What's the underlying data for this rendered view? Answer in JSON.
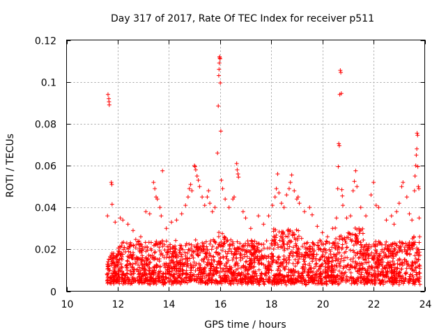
{
  "chart_data": {
    "type": "scatter",
    "title": "Day 317 of 2017, Rate Of TEC Index for receiver p511",
    "xlabel": "GPS time / hours",
    "ylabel": "ROTI / TECUs",
    "xlim": [
      10,
      24
    ],
    "ylim": [
      0,
      0.12
    ],
    "xticks": [
      "10",
      "12",
      "14",
      "16",
      "18",
      "20",
      "22",
      "24"
    ],
    "yticks": [
      "0",
      "0.02",
      "0.04",
      "0.06",
      "0.08",
      "0.1",
      "0.12"
    ],
    "xtick_values": [
      10,
      12,
      14,
      16,
      18,
      20,
      22,
      24
    ],
    "ytick_values": [
      0,
      0.02,
      0.04,
      0.06,
      0.08,
      0.1,
      0.12
    ],
    "grid": true,
    "marker": "plus",
    "color": "#ff0000",
    "series": [
      {
        "name": "ROTI",
        "cluster_note": "dense band of points between ~0.003 and ~0.03 TECU spanning 11.6h to 23.8h",
        "points": [
          [
            11.62,
            0.094
          ],
          [
            11.65,
            0.092
          ],
          [
            11.66,
            0.0905
          ],
          [
            11.67,
            0.089
          ],
          [
            11.6,
            0.036
          ],
          [
            11.75,
            0.052
          ],
          [
            11.77,
            0.051
          ],
          [
            11.78,
            0.0415
          ],
          [
            11.9,
            0.033
          ],
          [
            12.1,
            0.035
          ],
          [
            12.2,
            0.034
          ],
          [
            12.4,
            0.032
          ],
          [
            12.6,
            0.029
          ],
          [
            12.9,
            0.026
          ],
          [
            13.1,
            0.038
          ],
          [
            13.25,
            0.037
          ],
          [
            13.4,
            0.052
          ],
          [
            13.45,
            0.049
          ],
          [
            13.5,
            0.045
          ],
          [
            13.55,
            0.044
          ],
          [
            13.65,
            0.04
          ],
          [
            13.7,
            0.036
          ],
          [
            13.75,
            0.0575
          ],
          [
            13.9,
            0.03
          ],
          [
            14.1,
            0.033
          ],
          [
            14.3,
            0.034
          ],
          [
            14.5,
            0.037
          ],
          [
            14.65,
            0.041
          ],
          [
            14.75,
            0.045
          ],
          [
            14.8,
            0.049
          ],
          [
            14.85,
            0.051
          ],
          [
            14.9,
            0.048
          ],
          [
            15.0,
            0.06
          ],
          [
            15.02,
            0.0595
          ],
          [
            15.05,
            0.058
          ],
          [
            15.1,
            0.055
          ],
          [
            15.15,
            0.053
          ],
          [
            15.2,
            0.05
          ],
          [
            15.3,
            0.045
          ],
          [
            15.4,
            0.041
          ],
          [
            15.5,
            0.045
          ],
          [
            15.55,
            0.048
          ],
          [
            15.6,
            0.042
          ],
          [
            15.7,
            0.038
          ],
          [
            15.8,
            0.04
          ],
          [
            15.9,
            0.066
          ],
          [
            15.93,
            0.0885
          ],
          [
            15.95,
            0.103
          ],
          [
            15.96,
            0.106
          ],
          [
            15.97,
            0.109
          ],
          [
            15.98,
            0.112
          ],
          [
            15.99,
            0.1115
          ],
          [
            16.0,
            0.111
          ],
          [
            16.01,
            0.0995
          ],
          [
            16.03,
            0.0765
          ],
          [
            16.05,
            0.053
          ],
          [
            16.1,
            0.049
          ],
          [
            16.2,
            0.044
          ],
          [
            16.35,
            0.04
          ],
          [
            16.5,
            0.044
          ],
          [
            16.55,
            0.045
          ],
          [
            16.65,
            0.061
          ],
          [
            16.67,
            0.058
          ],
          [
            16.7,
            0.056
          ],
          [
            16.72,
            0.0545
          ],
          [
            16.9,
            0.038
          ],
          [
            17.0,
            0.035
          ],
          [
            17.2,
            0.03
          ],
          [
            17.5,
            0.036
          ],
          [
            17.7,
            0.032
          ],
          [
            17.9,
            0.036
          ],
          [
            18.05,
            0.041
          ],
          [
            18.15,
            0.045
          ],
          [
            18.2,
            0.049
          ],
          [
            18.25,
            0.056
          ],
          [
            18.3,
            0.047
          ],
          [
            18.4,
            0.042
          ],
          [
            18.5,
            0.04
          ],
          [
            18.6,
            0.046
          ],
          [
            18.7,
            0.049
          ],
          [
            18.75,
            0.052
          ],
          [
            18.8,
            0.0555
          ],
          [
            18.9,
            0.048
          ],
          [
            19.0,
            0.044
          ],
          [
            19.05,
            0.045
          ],
          [
            19.1,
            0.042
          ],
          [
            19.3,
            0.038
          ],
          [
            19.5,
            0.04
          ],
          [
            19.6,
            0.0365
          ],
          [
            19.8,
            0.031
          ],
          [
            20.0,
            0.028
          ],
          [
            20.2,
            0.026
          ],
          [
            20.4,
            0.03
          ],
          [
            20.55,
            0.035
          ],
          [
            20.6,
            0.049
          ],
          [
            20.62,
            0.0595
          ],
          [
            20.64,
            0.0705
          ],
          [
            20.66,
            0.0695
          ],
          [
            20.68,
            0.094
          ],
          [
            20.7,
            0.1055
          ],
          [
            20.72,
            0.1045
          ],
          [
            20.74,
            0.0945
          ],
          [
            20.76,
            0.0485
          ],
          [
            20.78,
            0.0455
          ],
          [
            20.8,
            0.041
          ],
          [
            20.95,
            0.035
          ],
          [
            21.1,
            0.036
          ],
          [
            21.2,
            0.048
          ],
          [
            21.25,
            0.0525
          ],
          [
            21.3,
            0.0575
          ],
          [
            21.35,
            0.05
          ],
          [
            21.5,
            0.04
          ],
          [
            21.7,
            0.036
          ],
          [
            21.9,
            0.046
          ],
          [
            22.0,
            0.052
          ],
          [
            22.1,
            0.041
          ],
          [
            22.2,
            0.04
          ],
          [
            22.5,
            0.034
          ],
          [
            22.7,
            0.036
          ],
          [
            22.8,
            0.032
          ],
          [
            22.9,
            0.038
          ],
          [
            23.0,
            0.042
          ],
          [
            23.1,
            0.05
          ],
          [
            23.15,
            0.052
          ],
          [
            23.3,
            0.045
          ],
          [
            23.4,
            0.037
          ],
          [
            23.5,
            0.034
          ],
          [
            23.6,
            0.048
          ],
          [
            23.62,
            0.055
          ],
          [
            23.65,
            0.06
          ],
          [
            23.67,
            0.065
          ],
          [
            23.69,
            0.068
          ],
          [
            23.7,
            0.0755
          ],
          [
            23.72,
            0.0745
          ],
          [
            23.73,
            0.0595
          ],
          [
            23.75,
            0.05
          ],
          [
            23.77,
            0.049
          ],
          [
            23.78,
            0.035
          ],
          [
            23.8,
            0.026
          ]
        ]
      }
    ]
  }
}
